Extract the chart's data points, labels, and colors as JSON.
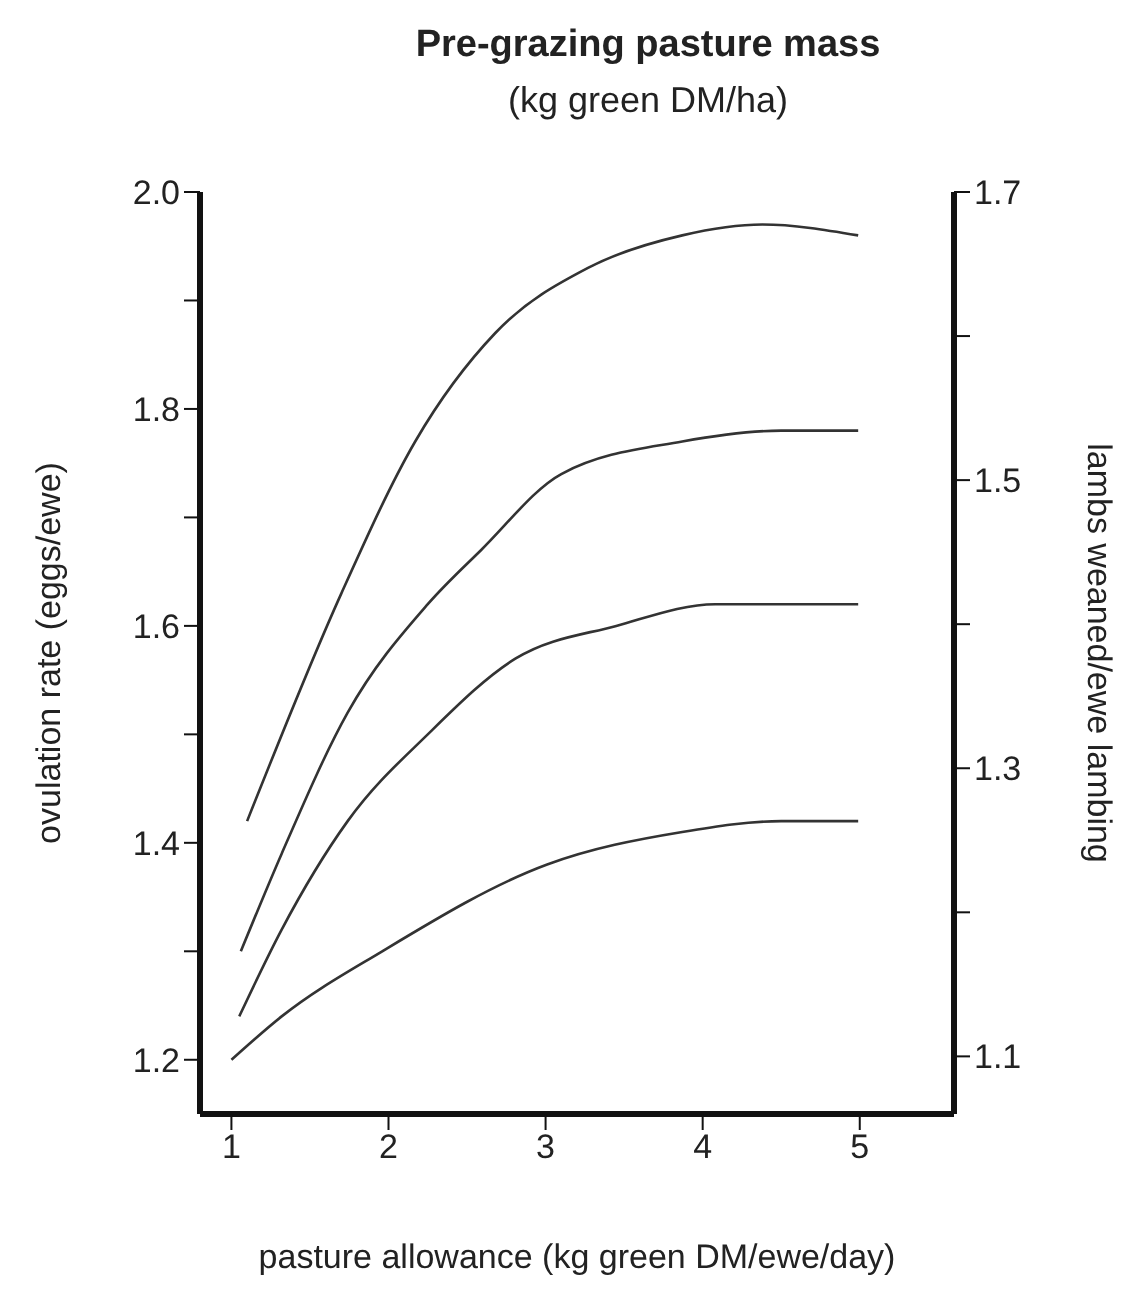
{
  "chart_data": {
    "type": "line",
    "title": "Pre-grazing pasture mass",
    "subtitle": "(kg green DM/ha)",
    "xlabel": "pasture allowance (kg green DM/ewe/day)",
    "ylabel": "ovulation rate (eggs/ewe)",
    "y2label": "lambs weaned/ewe lambing",
    "line_style": "solid",
    "xlim": [
      0.8,
      5.6
    ],
    "xticks": [
      1,
      2,
      3,
      4,
      5
    ],
    "ylim": [
      1.15,
      2.0
    ],
    "yticks": [
      1.2,
      {
        "value": 1.3,
        "label": null
      },
      1.4,
      {
        "value": 1.5,
        "label": null
      },
      1.6,
      {
        "value": 1.7,
        "label": null
      },
      1.8,
      {
        "value": 1.9,
        "label": null
      },
      {
        "value": 2.0,
        "label": "2.0"
      }
    ],
    "y2lim": [
      1.06,
      1.7
    ],
    "y2ticks": [
      1.1,
      {
        "value": 1.2,
        "label": null
      },
      1.3,
      {
        "value": 1.4,
        "label": null
      },
      1.5,
      {
        "value": 1.6,
        "label": null
      },
      1.7
    ],
    "series": [
      {
        "color": "#333333",
        "x": [
          1.1,
          1.7,
          2.17,
          2.68,
          3.27,
          3.87,
          4.38,
          4.99
        ],
        "values": [
          1.42,
          1.63,
          1.77,
          1.87,
          1.93,
          1.96,
          1.97,
          1.96
        ]
      },
      {
        "color": "#333333",
        "x": [
          1.06,
          1.32,
          1.74,
          2.25,
          2.59,
          3.1,
          3.87,
          4.5,
          4.99
        ],
        "values": [
          1.3,
          1.39,
          1.52,
          1.62,
          1.67,
          1.74,
          1.77,
          1.78,
          1.78
        ]
      },
      {
        "color": "#333333",
        "x": [
          1.05,
          1.32,
          1.74,
          2.25,
          2.81,
          3.45,
          4.08,
          4.54,
          4.99
        ],
        "values": [
          1.24,
          1.32,
          1.42,
          1.5,
          1.57,
          1.6,
          1.62,
          1.62,
          1.62
        ]
      },
      {
        "color": "#333333",
        "x": [
          1.0,
          1.32,
          1.96,
          3.01,
          3.87,
          4.5,
          4.99
        ],
        "values": [
          1.2,
          1.24,
          1.3,
          1.38,
          1.41,
          1.42,
          1.42
        ]
      }
    ]
  }
}
